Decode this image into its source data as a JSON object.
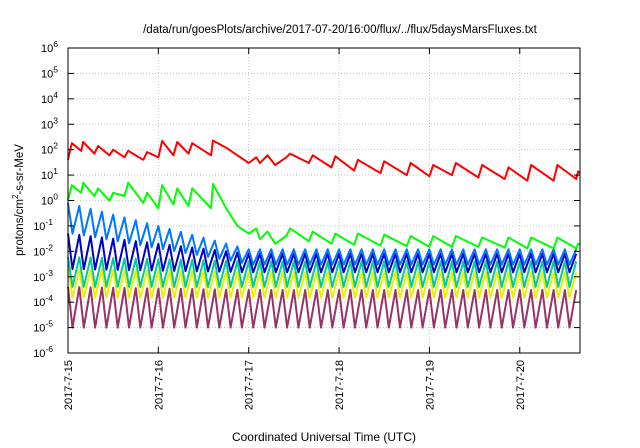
{
  "chart_data": {
    "type": "line",
    "title": "/data/run/goesPlots/archive/2017-07-20/16:00/flux/../flux/5daysMarsFluxes.txt",
    "xlabel": "Coordinated Universal Time (UTC)",
    "ylabel": "protons/cm²-s-sr-MeV",
    "ylabel_parts": {
      "pre": "protons/cm",
      "sup": "2",
      "post": "-s-sr-MeV"
    },
    "y_scale": "log",
    "ylim": [
      1e-06,
      1000000.0
    ],
    "y_ticks": [
      {
        "value": 1e-06,
        "base": "10",
        "exp": "-6"
      },
      {
        "value": 1e-05,
        "base": "10",
        "exp": "-5"
      },
      {
        "value": 0.0001,
        "base": "10",
        "exp": "-4"
      },
      {
        "value": 0.001,
        "base": "10",
        "exp": "-3"
      },
      {
        "value": 0.01,
        "base": "10",
        "exp": "-2"
      },
      {
        "value": 0.1,
        "base": "10",
        "exp": "-1"
      },
      {
        "value": 1.0,
        "base": "10",
        "exp": "0"
      },
      {
        "value": 10.0,
        "base": "10",
        "exp": "1"
      },
      {
        "value": 100.0,
        "base": "10",
        "exp": "2"
      },
      {
        "value": 1000.0,
        "base": "10",
        "exp": "3"
      },
      {
        "value": 10000.0,
        "base": "10",
        "exp": "4"
      },
      {
        "value": 100000.0,
        "base": "10",
        "exp": "5"
      },
      {
        "value": 1000000.0,
        "base": "10",
        "exp": "6"
      }
    ],
    "xlim": [
      "2017-07-15T00:00",
      "2017-07-20T16:00"
    ],
    "x_ticks": [
      {
        "value": "2017-07-15T00:00",
        "label": "2017-7-15"
      },
      {
        "value": "2017-07-16T00:00",
        "label": "2017-7-16"
      },
      {
        "value": "2017-07-17T00:00",
        "label": "2017-7-17"
      },
      {
        "value": "2017-07-18T00:00",
        "label": "2017-7-18"
      },
      {
        "value": "2017-07-19T00:00",
        "label": "2017-7-19"
      },
      {
        "value": "2017-07-20T00:00",
        "label": "2017-7-20"
      }
    ],
    "grid": true,
    "legend": "none",
    "series": [
      {
        "color": "#ff0000",
        "x": [
          "2017-07-15T00:00",
          "2017-07-15T01:00",
          "2017-07-15T03:30",
          "2017-07-15T04:00",
          "2017-07-15T07:00",
          "2017-07-15T08:00",
          "2017-07-15T11:00",
          "2017-07-15T12:00",
          "2017-07-15T15:00",
          "2017-07-15T16:00",
          "2017-07-15T20:00",
          "2017-07-15T21:00",
          "2017-07-16T00:00",
          "2017-07-16T01:00",
          "2017-07-16T04:00",
          "2017-07-16T05:00",
          "2017-07-16T08:00",
          "2017-07-16T09:00",
          "2017-07-16T14:00",
          "2017-07-16T14:30",
          "2017-07-16T18:00",
          "2017-07-16T21:00",
          "2017-07-17T00:00",
          "2017-07-17T02:00",
          "2017-07-17T03:00",
          "2017-07-17T05:00",
          "2017-07-17T07:00",
          "2017-07-17T10:00",
          "2017-07-17T11:00",
          "2017-07-17T16:00",
          "2017-07-17T17:00",
          "2017-07-17T22:00",
          "2017-07-17T23:00",
          "2017-07-18T04:00",
          "2017-07-18T05:00",
          "2017-07-18T11:00",
          "2017-07-18T12:00",
          "2017-07-18T18:00",
          "2017-07-18T19:00",
          "2017-07-19T00:00",
          "2017-07-19T01:00",
          "2017-07-19T06:00",
          "2017-07-19T07:00",
          "2017-07-19T13:00",
          "2017-07-19T14:00",
          "2017-07-19T20:00",
          "2017-07-19T21:00",
          "2017-07-20T02:00",
          "2017-07-20T03:00",
          "2017-07-20T09:00",
          "2017-07-20T10:00",
          "2017-07-20T15:00",
          "2017-07-20T15:30",
          "2017-07-20T16:00"
        ],
        "y": [
          40,
          180,
          90,
          200,
          70,
          140,
          60,
          100,
          50,
          90,
          40,
          80,
          50,
          220,
          60,
          200,
          70,
          180,
          60,
          230,
          120,
          60,
          30,
          50,
          30,
          60,
          25,
          50,
          70,
          30,
          60,
          20,
          55,
          15,
          40,
          12,
          35,
          10,
          30,
          9,
          25,
          10,
          30,
          8,
          25,
          7,
          20,
          6,
          25,
          6,
          25,
          7,
          14,
          12
        ]
      },
      {
        "color": "#00ff00",
        "x": [
          "2017-07-15T00:00",
          "2017-07-15T01:00",
          "2017-07-15T03:30",
          "2017-07-15T04:00",
          "2017-07-15T07:00",
          "2017-07-15T08:00",
          "2017-07-15T11:00",
          "2017-07-15T12:00",
          "2017-07-15T15:00",
          "2017-07-15T16:00",
          "2017-07-15T20:00",
          "2017-07-15T21:00",
          "2017-07-16T00:00",
          "2017-07-16T01:00",
          "2017-07-16T04:00",
          "2017-07-16T05:00",
          "2017-07-16T08:00",
          "2017-07-16T09:00",
          "2017-07-16T14:00",
          "2017-07-16T14:30",
          "2017-07-16T18:00",
          "2017-07-16T21:00",
          "2017-07-17T00:00",
          "2017-07-17T02:00",
          "2017-07-17T03:00",
          "2017-07-17T05:00",
          "2017-07-17T07:00",
          "2017-07-17T10:00",
          "2017-07-17T11:00",
          "2017-07-17T16:00",
          "2017-07-17T17:00",
          "2017-07-17T22:00",
          "2017-07-17T23:00",
          "2017-07-18T04:00",
          "2017-07-18T05:00",
          "2017-07-18T11:00",
          "2017-07-18T12:00",
          "2017-07-18T18:00",
          "2017-07-18T19:00",
          "2017-07-19T00:00",
          "2017-07-19T01:00",
          "2017-07-19T06:00",
          "2017-07-19T07:00",
          "2017-07-19T13:00",
          "2017-07-19T14:00",
          "2017-07-19T20:00",
          "2017-07-19T21:00",
          "2017-07-20T02:00",
          "2017-07-20T03:00",
          "2017-07-20T09:00",
          "2017-07-20T10:00",
          "2017-07-20T15:00",
          "2017-07-20T15:30",
          "2017-07-20T16:00"
        ],
        "y": [
          1,
          4,
          2,
          5,
          1.5,
          3,
          1,
          2,
          1.5,
          5,
          0.8,
          2,
          0.5,
          4,
          0.7,
          3,
          0.6,
          3,
          0.5,
          4.5,
          0.5,
          0.1,
          0.05,
          0.08,
          0.03,
          0.06,
          0.02,
          0.04,
          0.08,
          0.025,
          0.06,
          0.02,
          0.05,
          0.018,
          0.05,
          0.017,
          0.045,
          0.016,
          0.04,
          0.015,
          0.04,
          0.015,
          0.04,
          0.015,
          0.035,
          0.014,
          0.035,
          0.013,
          0.035,
          0.013,
          0.035,
          0.013,
          0.02,
          0.018
        ]
      }
    ],
    "series_patterned": [
      {
        "color": "#0077ff",
        "baseline_early": 0.05,
        "peak_early": 0.8,
        "baseline_late": 0.003,
        "peak_late": 0.012
      },
      {
        "color": "#0000cc",
        "baseline_early": 0.002,
        "peak_early": 0.05,
        "baseline_late": 0.0015,
        "peak_late": 0.008
      },
      {
        "color": "#00cc99",
        "baseline_early": 0.0004,
        "peak_early": 0.006,
        "baseline_late": 0.0004,
        "peak_late": 0.004
      },
      {
        "color": "#eeee00",
        "baseline_early": 0.00015,
        "peak_early": 0.002,
        "baseline_late": 0.00015,
        "peak_late": 0.0015
      },
      {
        "color": "#993366",
        "baseline_early": 1e-05,
        "peak_early": 0.0004,
        "baseline_late": 1e-05,
        "peak_late": 0.0003
      }
    ]
  }
}
